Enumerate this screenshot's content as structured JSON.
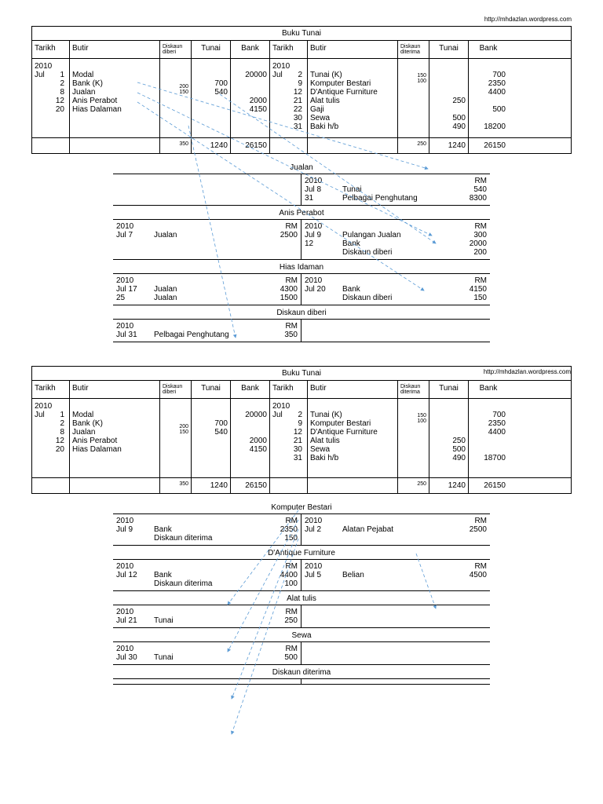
{
  "url": "http://mhdazlan.wordpress.com",
  "headers": {
    "tarikh": "Tarikh",
    "butir": "Butir",
    "diskaun_diberi": "Diskaun diberi",
    "diskaun_diterima": "Diskaun diterima",
    "tunai": "Tunai",
    "bank": "Bank"
  },
  "bt1": {
    "title": "Buku Tunai",
    "left": {
      "year": "2010",
      "month": "Jul",
      "rows": [
        {
          "d": "1",
          "butir": "Modal",
          "disk": "",
          "tunai": "",
          "bank": "20000"
        },
        {
          "d": "2",
          "butir": "Bank (K)",
          "disk": "",
          "tunai": "700",
          "bank": ""
        },
        {
          "d": "8",
          "butir": "Jualan",
          "disk": "",
          "tunai": "540",
          "bank": ""
        },
        {
          "d": "12",
          "butir": "Anis Perabot",
          "disk": "200",
          "tunai": "",
          "bank": "2000"
        },
        {
          "d": "20",
          "butir": "Hias Dalaman",
          "disk": "150",
          "tunai": "",
          "bank": "4150"
        }
      ],
      "totals": {
        "disk": "350",
        "tunai": "1240",
        "bank": "26150"
      }
    },
    "right": {
      "year": "2010",
      "month": "Jul",
      "rows": [
        {
          "d": "2",
          "butir": "Tunai (K)",
          "disk": "",
          "tunai": "",
          "bank": "700"
        },
        {
          "d": "9",
          "butir": "Komputer Bestari",
          "disk": "150",
          "tunai": "",
          "bank": "2350"
        },
        {
          "d": "12",
          "butir": "D'Antique Furniture",
          "disk": "100",
          "tunai": "",
          "bank": "4400"
        },
        {
          "d": "21",
          "butir": "Alat tulis",
          "disk": "",
          "tunai": "250",
          "bank": ""
        },
        {
          "d": "22",
          "butir": "Gaji",
          "disk": "",
          "tunai": "",
          "bank": "500"
        },
        {
          "d": "30",
          "butir": "Sewa",
          "disk": "",
          "tunai": "500",
          "bank": ""
        },
        {
          "d": "31",
          "butir": "Baki h/b",
          "disk": "",
          "tunai": "490",
          "bank": "18200"
        }
      ],
      "totals": {
        "disk": "250",
        "tunai": "1240",
        "bank": "26150"
      }
    }
  },
  "ledgers1": [
    {
      "title": "Jualan",
      "left": [],
      "right": [
        {
          "y": "2010",
          "m": "Jul",
          "d": "8",
          "desc": "Tunai",
          "rm": "540"
        },
        {
          "y": "",
          "m": "",
          "d": "31",
          "desc": "Pelbagai Penghutang",
          "rm": "8300"
        }
      ],
      "rmhdr": true
    },
    {
      "title": "Anis Perabot",
      "left": [
        {
          "y": "2010",
          "m": "Jul 7",
          "d": "",
          "desc": "Jualan",
          "rm": "2500"
        }
      ],
      "right": [
        {
          "y": "2010",
          "m": "Jul",
          "d": "9",
          "desc": "Pulangan Jualan",
          "rm": "300"
        },
        {
          "y": "",
          "m": "",
          "d": "12",
          "desc": "Bank",
          "rm": "2000"
        },
        {
          "y": "",
          "m": "",
          "d": "",
          "desc": "Diskaun diberi",
          "rm": "200"
        }
      ],
      "rmhdr": true
    },
    {
      "title": "Hias Idaman",
      "left": [
        {
          "y": "2010",
          "m": "Jul",
          "d": "17",
          "desc": "Jualan",
          "rm": "4300"
        },
        {
          "y": "",
          "m": "",
          "d": "25",
          "desc": "Jualan",
          "rm": "1500"
        }
      ],
      "right": [
        {
          "y": "2010",
          "m": "Jul 20",
          "d": "",
          "desc": "Bank",
          "rm": "4150"
        },
        {
          "y": "",
          "m": "",
          "d": "",
          "desc": "Diskaun diberi",
          "rm": "150"
        }
      ],
      "rmhdr": true
    },
    {
      "title": "Diskaun diberi",
      "left": [
        {
          "y": "2010",
          "m": "Jul",
          "d": "31",
          "desc": "Pelbagai Penghutang",
          "rm": "350"
        }
      ],
      "right": [],
      "rmhdr": true
    }
  ],
  "bt2": {
    "title": "Buku Tunai",
    "left": {
      "year": "2010",
      "month": "Jul",
      "rows": [
        {
          "d": "1",
          "butir": "Modal",
          "disk": "",
          "tunai": "",
          "bank": "20000"
        },
        {
          "d": "2",
          "butir": "Bank (K)",
          "disk": "",
          "tunai": "700",
          "bank": ""
        },
        {
          "d": "8",
          "butir": "Jualan",
          "disk": "",
          "tunai": "540",
          "bank": ""
        },
        {
          "d": "12",
          "butir": "Anis Perabot",
          "disk": "200",
          "tunai": "",
          "bank": "2000"
        },
        {
          "d": "20",
          "butir": "Hias Dalaman",
          "disk": "150",
          "tunai": "",
          "bank": "4150"
        }
      ],
      "totals": {
        "disk": "350",
        "tunai": "1240",
        "bank": "26150"
      }
    },
    "right": {
      "year": "2010",
      "month": "Jul",
      "rows": [
        {
          "d": "2",
          "butir": "Tunai (K)",
          "disk": "",
          "tunai": "",
          "bank": "700"
        },
        {
          "d": "9",
          "butir": "Komputer Bestari",
          "disk": "150",
          "tunai": "",
          "bank": "2350"
        },
        {
          "d": "12",
          "butir": "D'Antique Furniture",
          "disk": "100",
          "tunai": "",
          "bank": "4400"
        },
        {
          "d": "21",
          "butir": "Alat tulis",
          "disk": "",
          "tunai": "250",
          "bank": ""
        },
        {
          "d": "30",
          "butir": "Sewa",
          "disk": "",
          "tunai": "500",
          "bank": ""
        },
        {
          "d": "31",
          "butir": "Baki h/b",
          "disk": "",
          "tunai": "490",
          "bank": "18700"
        }
      ],
      "totals": {
        "disk": "250",
        "tunai": "1240",
        "bank": "26150"
      }
    }
  },
  "ledgers2": [
    {
      "title": "Komputer Bestari",
      "left": [
        {
          "y": "2010",
          "m": "Jul 9",
          "d": "",
          "desc": "Bank",
          "rm": "2350"
        },
        {
          "y": "",
          "m": "",
          "d": "",
          "desc": "Diskaun diterima",
          "rm": "150"
        }
      ],
      "right": [
        {
          "y": "2010",
          "m": "Jul 2",
          "d": "",
          "desc": "Alatan Pejabat",
          "rm": "2500"
        }
      ],
      "rmhdr": true
    },
    {
      "title": "D'Antique Furniture",
      "left": [
        {
          "y": "2010",
          "m": "Jul 12",
          "d": "",
          "desc": "Bank",
          "rm": "4400"
        },
        {
          "y": "",
          "m": "",
          "d": "",
          "desc": "Diskaun diterima",
          "rm": "100"
        }
      ],
      "right": [
        {
          "y": "2010",
          "m": "Jul 5",
          "d": "",
          "desc": "Belian",
          "rm": "4500"
        }
      ],
      "rmhdr": true
    },
    {
      "title": "Alat tulis",
      "left": [
        {
          "y": "2010",
          "m": "Jul 21",
          "d": "",
          "desc": "Tunai",
          "rm": "250"
        }
      ],
      "right": [],
      "rmhdr": true
    },
    {
      "title": "Sewa",
      "left": [
        {
          "y": "2010",
          "m": "Jul 30",
          "d": "",
          "desc": "Tunai",
          "rm": "500"
        }
      ],
      "right": [],
      "rmhdr": true
    },
    {
      "title": "Diskaun diterima",
      "left": [],
      "right": [],
      "rmhdr": false
    }
  ],
  "rm_label": "RM"
}
